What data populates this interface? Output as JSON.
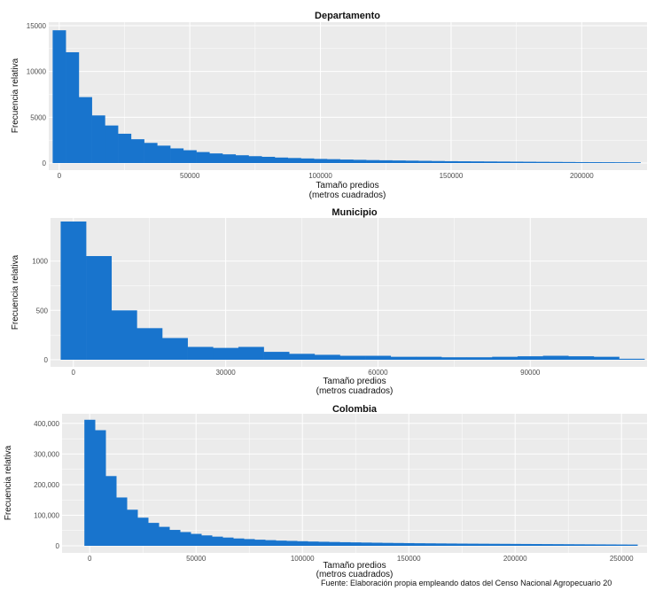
{
  "figure": {
    "source_note": "Fuente: Elaboración propia empleando datos del Censo Nacional Agropecuario 20"
  },
  "chart_data": [
    {
      "type": "bar",
      "title": "Departamento",
      "xlabel": "Tamaño predios",
      "xlabel2": "(metros cuadrados)",
      "ylabel": "Frecuencia relativa",
      "xlim": [
        -4000,
        225000
      ],
      "ylim": [
        0,
        15000
      ],
      "xticks": [
        0,
        50000,
        100000,
        150000,
        200000
      ],
      "xtick_labels": [
        "0",
        "50000",
        "100000",
        "150000",
        "200000"
      ],
      "yticks": [
        0,
        5000,
        10000,
        15000
      ],
      "ytick_labels": [
        "0",
        "5000",
        "10000",
        "15000"
      ],
      "bar_color": "#1874CD",
      "bin_width": 5000,
      "bin_start": -2500,
      "values": [
        14500,
        12100,
        7200,
        5200,
        4100,
        3200,
        2600,
        2200,
        1900,
        1600,
        1400,
        1200,
        1050,
        950,
        850,
        750,
        680,
        600,
        550,
        500,
        450,
        420,
        380,
        350,
        320,
        300,
        280,
        260,
        240,
        220,
        200,
        190,
        180,
        170,
        160,
        150,
        140,
        130,
        120,
        110,
        100,
        95,
        90,
        85,
        80
      ]
    },
    {
      "type": "bar",
      "title": "Municipio",
      "xlabel": "Tamaño predios",
      "xlabel2": "(metros cuadrados)",
      "ylabel": "Frecuencia relativa",
      "xlim": [
        -4500,
        113000
      ],
      "ylim": [
        0,
        1400
      ],
      "xticks": [
        0,
        30000,
        60000,
        90000
      ],
      "xtick_labels": [
        "0",
        "30000",
        "60000",
        "90000"
      ],
      "yticks": [
        0,
        500,
        1000
      ],
      "ytick_labels": [
        "0",
        "500",
        "1000"
      ],
      "bar_color": "#1874CD",
      "bin_width": 5000,
      "bin_start": -2500,
      "values": [
        1400,
        1050,
        500,
        320,
        220,
        130,
        120,
        130,
        80,
        60,
        50,
        40,
        40,
        30,
        30,
        25,
        25,
        30,
        35,
        40,
        35,
        30,
        10
      ]
    },
    {
      "type": "bar",
      "title": "Colombia",
      "xlabel": "Tamaño predios",
      "xlabel2": "(metros cuadrados)",
      "ylabel": "Frecuencia relativa",
      "xlim": [
        -13000,
        262000
      ],
      "ylim": [
        0,
        420000
      ],
      "xticks": [
        0,
        50000,
        100000,
        150000,
        200000,
        250000
      ],
      "xtick_labels": [
        "0",
        "50000",
        "100000",
        "150000",
        "200000",
        "250000"
      ],
      "yticks": [
        0,
        100000,
        200000,
        300000,
        400000
      ],
      "ytick_labels": [
        "0",
        "100,000",
        "200,000",
        "300,000",
        "400,000"
      ],
      "bar_color": "#1874CD",
      "bin_width": 5000,
      "bin_start": -2500,
      "values": [
        412000,
        378000,
        228000,
        158000,
        118000,
        92000,
        75000,
        62000,
        52000,
        45000,
        39000,
        34000,
        30000,
        27000,
        24000,
        22000,
        20000,
        18500,
        17000,
        16000,
        15000,
        14000,
        13200,
        12500,
        11800,
        11200,
        10600,
        10100,
        9600,
        9200,
        8800,
        8400,
        8100,
        7800,
        7500,
        7200,
        7000,
        6800,
        6600,
        6400,
        6200,
        6000,
        5800,
        5600,
        5400,
        5200,
        5000,
        4800,
        4600,
        4400,
        4200,
        4000
      ]
    }
  ]
}
